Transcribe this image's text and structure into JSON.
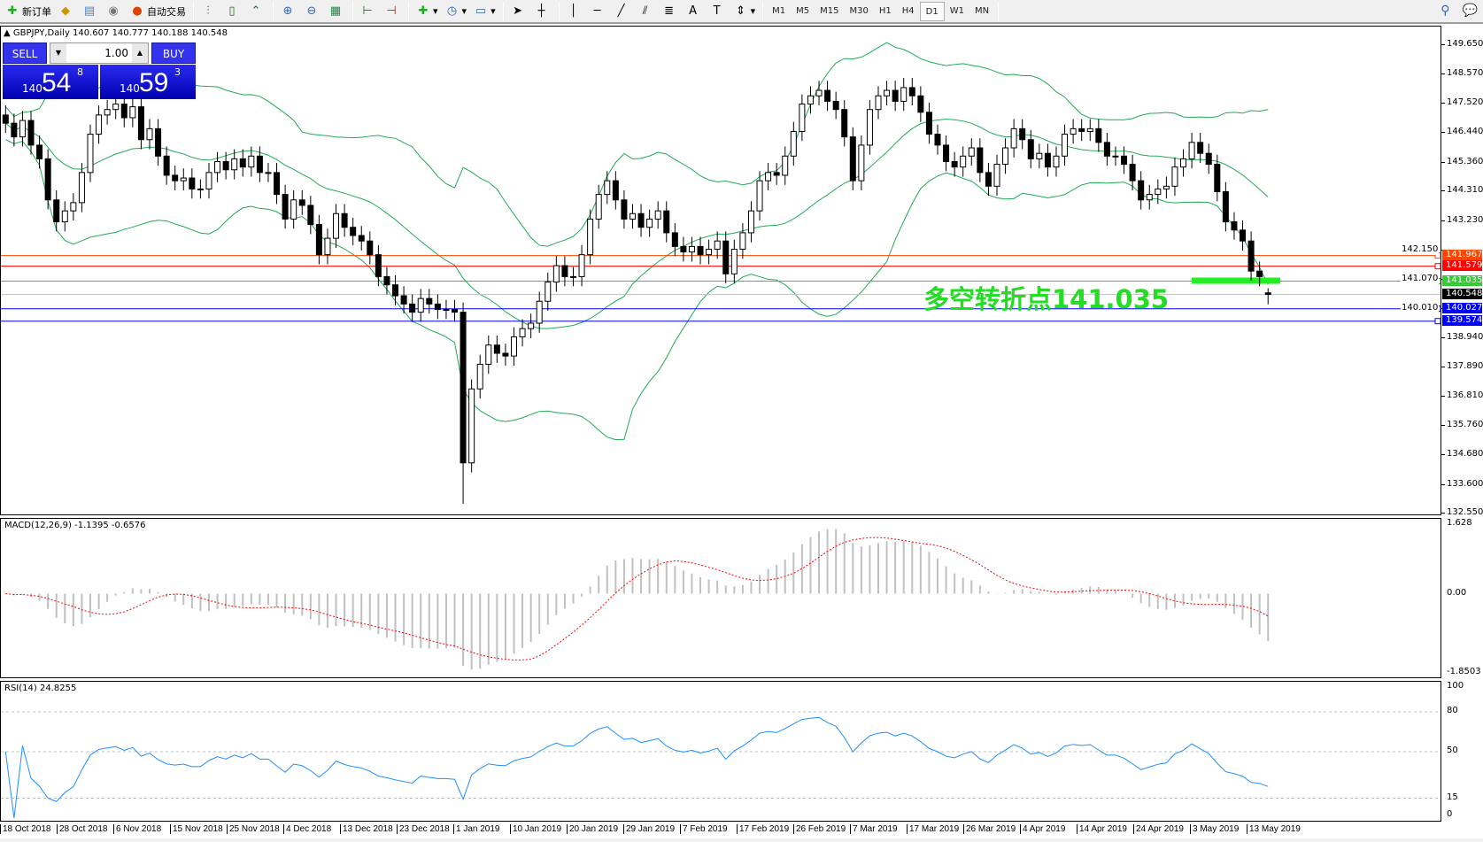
{
  "toolbar": {
    "new_order": "新订单",
    "auto_trading": "自动交易",
    "icons": [
      "new-order-icon",
      "market-watch-icon",
      "navigator-icon",
      "signals-icon",
      "auto-trading-icon",
      "bar-chart-icon",
      "candlestick-icon",
      "line-chart-icon",
      "zoom-in-icon",
      "zoom-out-icon",
      "tile-windows-icon",
      "chart-shift-icon",
      "autoscroll-icon",
      "indicators-icon",
      "periods-icon",
      "templates-icon",
      "cursor-icon",
      "crosshair-icon",
      "vertical-line-icon",
      "horizontal-line-icon",
      "trendline-icon",
      "equidistant-channel-icon",
      "fibonacci-icon",
      "text-icon",
      "text-label-icon",
      "arrows-icon",
      "search-icon",
      "chat-icon"
    ],
    "timeframes": [
      "M1",
      "M5",
      "M15",
      "M30",
      "H1",
      "H4",
      "D1",
      "W1",
      "MN"
    ],
    "active_timeframe": "D1"
  },
  "chart": {
    "header": "GBPJPY,Daily  140.607 140.777 140.188 140.548",
    "trade_panel": {
      "sell": "SELL",
      "buy": "BUY",
      "volume": "1.00",
      "sell_prefix": "140",
      "sell_big": "54",
      "sell_sup": "8",
      "buy_prefix": "140",
      "buy_big": "59",
      "buy_sup": "3"
    },
    "annotation": "多空转折点141.035"
  },
  "chart_data": {
    "type": "candlestick",
    "symbol": "GBPJPY",
    "period": "Daily",
    "close": [
      146.8,
      146.3,
      146.9,
      146.0,
      145.5,
      144.0,
      143.2,
      143.6,
      143.9,
      145.0,
      146.4,
      147.1,
      147.3,
      147.5,
      147.0,
      147.4,
      146.2,
      146.6,
      145.6,
      144.9,
      144.7,
      144.8,
      144.4,
      144.4,
      145.0,
      145.4,
      145.1,
      145.5,
      145.2,
      145.6,
      145.0,
      145.0,
      144.2,
      143.3,
      144.0,
      143.8,
      143.1,
      142.0,
      142.6,
      143.5,
      143.0,
      142.7,
      142.5,
      142.0,
      141.2,
      140.9,
      140.5,
      140.2,
      139.9,
      140.4,
      140.2,
      140.0,
      140.0,
      139.9,
      134.4,
      137.1,
      138.0,
      138.7,
      138.4,
      138.3,
      139.0,
      139.3,
      139.5,
      140.3,
      141.0,
      141.6,
      141.2,
      141.2,
      142.0,
      143.3,
      144.2,
      144.7,
      144.0,
      143.3,
      143.5,
      143.0,
      143.3,
      143.6,
      142.8,
      142.3,
      142.1,
      142.3,
      142.0,
      142.2,
      142.5,
      141.3,
      142.2,
      142.8,
      143.6,
      144.7,
      145.0,
      144.9,
      145.6,
      146.5,
      147.5,
      147.8,
      148.0,
      147.6,
      147.3,
      146.3,
      144.7,
      146.0,
      147.3,
      147.8,
      148.0,
      147.6,
      148.1,
      147.8,
      147.2,
      146.4,
      146.0,
      145.4,
      145.2,
      145.6,
      145.9,
      145.0,
      144.5,
      145.3,
      145.9,
      146.6,
      146.2,
      145.5,
      145.7,
      145.2,
      145.6,
      146.4,
      146.6,
      146.5,
      146.6,
      146.1,
      145.6,
      145.6,
      145.3,
      144.7,
      144.0,
      144.2,
      144.4,
      144.5,
      145.2,
      145.5,
      146.1,
      145.7,
      145.3,
      144.3,
      143.2,
      142.9,
      142.5,
      141.4,
      141.2,
      140.548
    ],
    "last_bar": {
      "open": 140.607,
      "high": 140.777,
      "low": 140.188,
      "close": 140.548
    },
    "flash_crash_low": 132.9,
    "price_axis": {
      "range": [
        132.55,
        149.65
      ],
      "ticks": [
        "149.650",
        "148.570",
        "147.520",
        "146.440",
        "145.360",
        "144.310",
        "143.230",
        "142.150",
        "141.070",
        "140.010",
        "138.940",
        "137.890",
        "136.810",
        "135.760",
        "134.680",
        "133.600",
        "132.550"
      ]
    },
    "levels": [
      {
        "price": "141.967",
        "color": "#ff4500"
      },
      {
        "price": "141.579",
        "color": "#ff0000"
      },
      {
        "price": "141.035",
        "color": "#32cd32"
      },
      {
        "price": "140.548",
        "color": "#000000",
        "bid": true
      },
      {
        "price": "140.027",
        "color": "#0000ff"
      },
      {
        "price": "139.574",
        "color": "#0000ff"
      }
    ],
    "indicators": {
      "bollinger": {
        "period": 20,
        "deviation": 2,
        "color": "#22aa55"
      },
      "macd": {
        "label": "MACD(12,26,9) -1.1395 -0.6576",
        "range": [
          -1.8503,
          1.628
        ],
        "ticks": [
          "1.628",
          "0.00",
          "-1.8503"
        ],
        "hist_color": "#c0c0c0",
        "signal_color": "#ff0000"
      },
      "rsi": {
        "label": "RSI(14) 24.8255",
        "period": 14,
        "levels": [
          80,
          50,
          15
        ],
        "ticks": [
          "100",
          "80",
          "50",
          "15",
          "0"
        ],
        "color": "#1e90ff"
      }
    },
    "time_labels": [
      "18 Oct 2018",
      "28 Oct 2018",
      "6 Nov 2018",
      "15 Nov 2018",
      "25 Nov 2018",
      "4 Dec 2018",
      "13 Dec 2018",
      "23 Dec 2018",
      "1 Jan 2019",
      "10 Jan 2019",
      "20 Jan 2019",
      "29 Jan 2019",
      "7 Feb 2019",
      "17 Feb 2019",
      "26 Feb 2019",
      "7 Mar 2019",
      "17 Mar 2019",
      "26 Mar 2019",
      "4 Apr 2019",
      "14 Apr 2019",
      "24 Apr 2019",
      "3 May 2019",
      "13 May 2019"
    ]
  }
}
